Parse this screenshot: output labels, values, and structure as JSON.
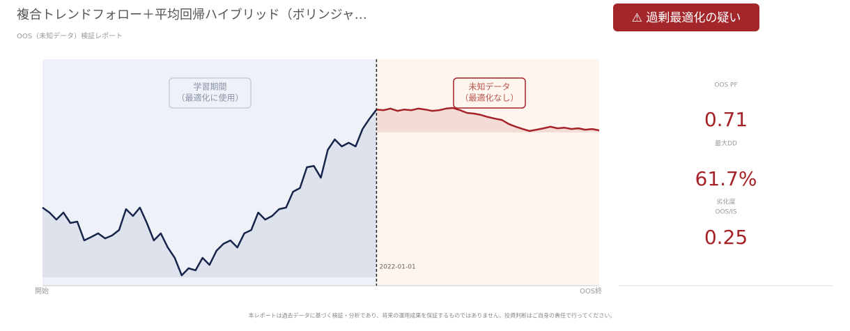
{
  "header": {
    "title": "複合トレンドフォロー＋平均回帰ハイブリッド（ボリンジャ…",
    "subtitle": "OOS（未知データ）検証レポート",
    "badge": "⚠ 過剰最適化の疑い"
  },
  "chart_data": {
    "type": "line",
    "x_start_label": "開始",
    "x_end_label": "OOS終",
    "split_label": "2022-01-01",
    "annotations": [
      {
        "lines": [
          "学習期間",
          "（最適化に使用）"
        ]
      },
      {
        "lines": [
          "未知データ",
          "（最適化なし）"
        ]
      }
    ],
    "ylim": [
      0,
      100
    ],
    "series": [
      {
        "name": "学習期間",
        "color": "#16244a",
        "values": [
          34.5,
          32.3,
          29.2,
          32.3,
          27.7,
          28.3,
          20.0,
          21.5,
          23.1,
          20.9,
          22.2,
          24.6,
          33.8,
          30.8,
          34.5,
          27.7,
          20.0,
          23.1,
          16.9,
          12.3,
          4.6,
          7.7,
          6.8,
          12.3,
          9.2,
          15.4,
          18.5,
          20.0,
          16.9,
          23.1,
          24.6,
          32.3,
          29.2,
          30.8,
          33.8,
          34.5,
          41.5,
          43.1,
          52.3,
          52.9,
          47.7,
          60.0,
          64.6,
          61.5,
          63.1,
          61.5,
          69.2,
          73.8,
          77.8
        ]
      },
      {
        "name": "未知データ",
        "color": "#a52228",
        "values": [
          77.8,
          77.5,
          78.2,
          77.2,
          77.8,
          77.5,
          78.2,
          77.8,
          77.2,
          77.5,
          78.2,
          78.5,
          77.5,
          76.3,
          76.0,
          75.4,
          74.5,
          73.8,
          73.2,
          71.4,
          70.2,
          69.2,
          68.3,
          68.9,
          69.5,
          70.2,
          69.5,
          69.8,
          69.2,
          69.5,
          68.9,
          69.2,
          68.6
        ]
      }
    ]
  },
  "metrics": [
    {
      "label": "OOS PF",
      "value": "0.71"
    },
    {
      "label": "最大DD",
      "value": "61.7%"
    },
    {
      "label": "劣化度\nOOS/IS",
      "value": "0.25"
    }
  ],
  "footer": "本レポートは過去データに基づく検証・分析であり、将来の運用成果を保証するものではありません。投資判断はご自身の責任で行ってください。"
}
